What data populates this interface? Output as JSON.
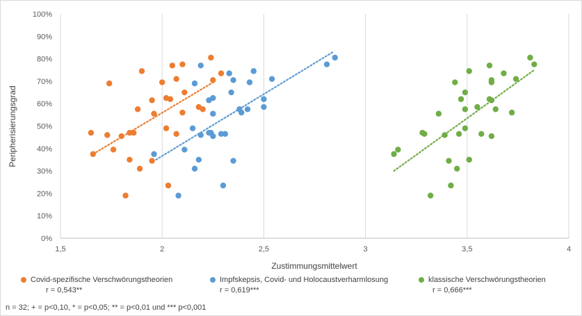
{
  "chart_data": {
    "type": "scatter",
    "xlabel": "Zustimmungsmittelwert",
    "ylabel": "Peripherisierungsgrad",
    "xlim": [
      1.5,
      4
    ],
    "ylim": [
      0,
      1
    ],
    "x_ticks": [
      "1,5",
      "2",
      "2,5",
      "3",
      "3,5",
      "4"
    ],
    "y_ticks": [
      "0%",
      "10%",
      "20%",
      "30%",
      "40%",
      "50%",
      "60%",
      "70%",
      "80%",
      "90%",
      "100%"
    ],
    "grid": "vertical",
    "legend_position": "bottom",
    "series": [
      {
        "name": "Covid-spezifische Verschwörungstheorien",
        "r_label": "r = 0,543**",
        "color": "#ed7d31",
        "trend": {
          "x": [
            1.66,
            2.26
          ],
          "y": [
            0.375,
            0.7
          ]
        },
        "points": [
          [
            1.65,
            0.47
          ],
          [
            1.66,
            0.375
          ],
          [
            1.73,
            0.46
          ],
          [
            1.74,
            0.69
          ],
          [
            1.76,
            0.395
          ],
          [
            1.8,
            0.455
          ],
          [
            1.82,
            0.19
          ],
          [
            1.84,
            0.47
          ],
          [
            1.84,
            0.35
          ],
          [
            1.86,
            0.47
          ],
          [
            1.88,
            0.575
          ],
          [
            1.89,
            0.31
          ],
          [
            1.9,
            0.745
          ],
          [
            1.95,
            0.615
          ],
          [
            1.95,
            0.345
          ],
          [
            1.96,
            0.555
          ],
          [
            2.0,
            0.695
          ],
          [
            2.02,
            0.49
          ],
          [
            2.02,
            0.625
          ],
          [
            2.03,
            0.235
          ],
          [
            2.04,
            0.62
          ],
          [
            2.05,
            0.77
          ],
          [
            2.07,
            0.71
          ],
          [
            2.07,
            0.465
          ],
          [
            2.1,
            0.56
          ],
          [
            2.1,
            0.775
          ],
          [
            2.11,
            0.65
          ],
          [
            2.18,
            0.585
          ],
          [
            2.2,
            0.575
          ],
          [
            2.24,
            0.805
          ],
          [
            2.25,
            0.705
          ],
          [
            2.29,
            0.735
          ]
        ]
      },
      {
        "name": "Impfskepsis, Covid- und Holocaustverharmlosung",
        "r_label": "r = 0,619***",
        "color": "#5b9bd5",
        "trend": {
          "x": [
            1.97,
            2.84
          ],
          "y": [
            0.35,
            0.83
          ]
        },
        "points": [
          [
            1.96,
            0.375
          ],
          [
            2.08,
            0.19
          ],
          [
            2.11,
            0.395
          ],
          [
            2.15,
            0.49
          ],
          [
            2.16,
            0.31
          ],
          [
            2.16,
            0.69
          ],
          [
            2.18,
            0.35
          ],
          [
            2.19,
            0.77
          ],
          [
            2.19,
            0.46
          ],
          [
            2.23,
            0.615
          ],
          [
            2.23,
            0.47
          ],
          [
            2.24,
            0.47
          ],
          [
            2.25,
            0.455
          ],
          [
            2.25,
            0.555
          ],
          [
            2.25,
            0.625
          ],
          [
            2.29,
            0.465
          ],
          [
            2.3,
            0.235
          ],
          [
            2.31,
            0.465
          ],
          [
            2.33,
            0.735
          ],
          [
            2.34,
            0.65
          ],
          [
            2.35,
            0.345
          ],
          [
            2.35,
            0.705
          ],
          [
            2.38,
            0.575
          ],
          [
            2.39,
            0.56
          ],
          [
            2.42,
            0.575
          ],
          [
            2.43,
            0.695
          ],
          [
            2.45,
            0.745
          ],
          [
            2.5,
            0.585
          ],
          [
            2.5,
            0.62
          ],
          [
            2.54,
            0.71
          ],
          [
            2.81,
            0.775
          ],
          [
            2.85,
            0.805
          ]
        ]
      },
      {
        "name": "klassische Verschwörungstheorien",
        "r_label": "r = 0,666***",
        "color": "#70ad47",
        "trend": {
          "x": [
            3.14,
            3.83
          ],
          "y": [
            0.3,
            0.75
          ]
        },
        "points": [
          [
            3.14,
            0.375
          ],
          [
            3.16,
            0.395
          ],
          [
            3.28,
            0.47
          ],
          [
            3.29,
            0.465
          ],
          [
            3.32,
            0.19
          ],
          [
            3.36,
            0.555
          ],
          [
            3.39,
            0.46
          ],
          [
            3.41,
            0.345
          ],
          [
            3.42,
            0.235
          ],
          [
            3.44,
            0.695
          ],
          [
            3.45,
            0.31
          ],
          [
            3.46,
            0.465
          ],
          [
            3.47,
            0.62
          ],
          [
            3.49,
            0.49
          ],
          [
            3.49,
            0.575
          ],
          [
            3.49,
            0.65
          ],
          [
            3.51,
            0.745
          ],
          [
            3.51,
            0.35
          ],
          [
            3.55,
            0.585
          ],
          [
            3.57,
            0.465
          ],
          [
            3.61,
            0.62
          ],
          [
            3.61,
            0.77
          ],
          [
            3.62,
            0.455
          ],
          [
            3.62,
            0.615
          ],
          [
            3.62,
            0.695
          ],
          [
            3.62,
            0.705
          ],
          [
            3.64,
            0.575
          ],
          [
            3.68,
            0.735
          ],
          [
            3.72,
            0.56
          ],
          [
            3.74,
            0.71
          ],
          [
            3.81,
            0.805
          ],
          [
            3.83,
            0.775
          ]
        ]
      }
    ]
  },
  "footnote": "n = 32; + = p<0,10, * = p<0,05; ** = p<0,01 und *** p<0,001"
}
